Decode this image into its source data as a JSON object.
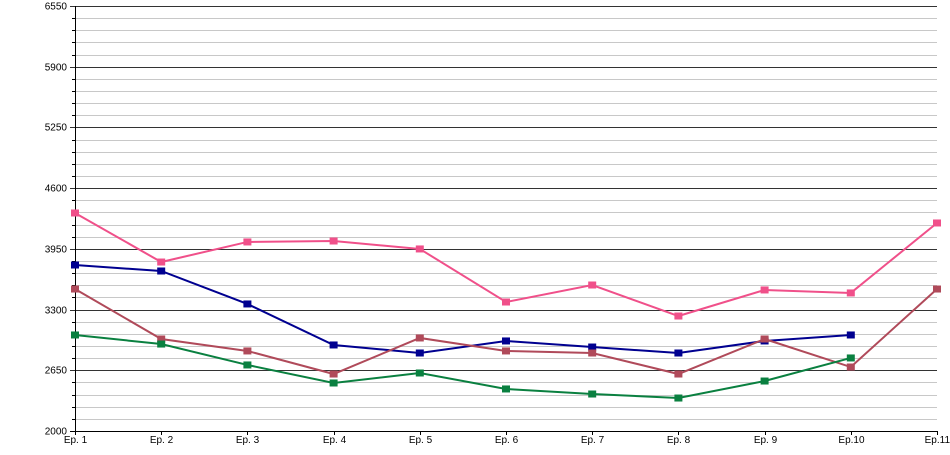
{
  "chart_data": {
    "type": "line",
    "title": "",
    "xlabel": "",
    "ylabel": "",
    "categories": [
      "Ep. 1",
      "Ep. 2",
      "Ep. 3",
      "Ep. 4",
      "Ep. 5",
      "Ep. 6",
      "Ep. 7",
      "Ep. 8",
      "Ep. 9",
      "Ep.10",
      "Ep.11"
    ],
    "ylim": [
      2000,
      6550
    ],
    "yticks": [
      2000,
      2650,
      3300,
      3950,
      4600,
      5250,
      5900,
      6550
    ],
    "minor_step": 130,
    "grid": true,
    "legend": "none",
    "series": [
      {
        "name": "pink",
        "color": "#f0508a",
        "values": [
          4334,
          3809,
          4024,
          4034,
          3949,
          3381,
          3563,
          3231,
          3510,
          3478,
          4227
        ]
      },
      {
        "name": "blue",
        "color": "#000090",
        "values": [
          3777,
          3713,
          3360,
          2921,
          2835,
          2964,
          2899,
          2835,
          2964,
          3028,
          null
        ]
      },
      {
        "name": "brown",
        "color": "#b04a5a",
        "values": [
          3520,
          2985,
          2857,
          2610,
          2996,
          2857,
          2835,
          2610,
          2985,
          2685,
          3520
        ]
      },
      {
        "name": "green",
        "color": "#0a8040",
        "values": [
          3028,
          2931,
          2707,
          2514,
          2621,
          2450,
          2396,
          2353,
          2535,
          2782,
          null
        ]
      }
    ]
  }
}
